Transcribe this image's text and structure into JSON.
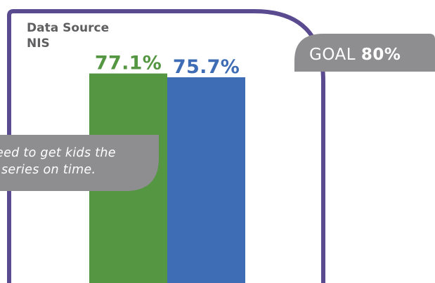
{
  "source": {
    "line1": "Data Source",
    "line2": "NIS"
  },
  "goal": {
    "prefix": "GOAL",
    "value": "80%",
    "color": "#8e8e90"
  },
  "callout": {
    "line1": "eed to get kids the",
    "line2": "series on time.",
    "color": "#8e8e90"
  },
  "colors": {
    "frame": "#5a4a8f",
    "green": "#559642",
    "blue": "#3f6db5"
  },
  "chart_data": {
    "type": "bar",
    "categories": [
      "",
      ""
    ],
    "values": [
      77.1,
      75.7
    ],
    "labels": [
      "77.1%",
      "75.7%"
    ],
    "colors": [
      "#559642",
      "#3f6db5"
    ],
    "ylim": [
      0,
      100
    ]
  }
}
